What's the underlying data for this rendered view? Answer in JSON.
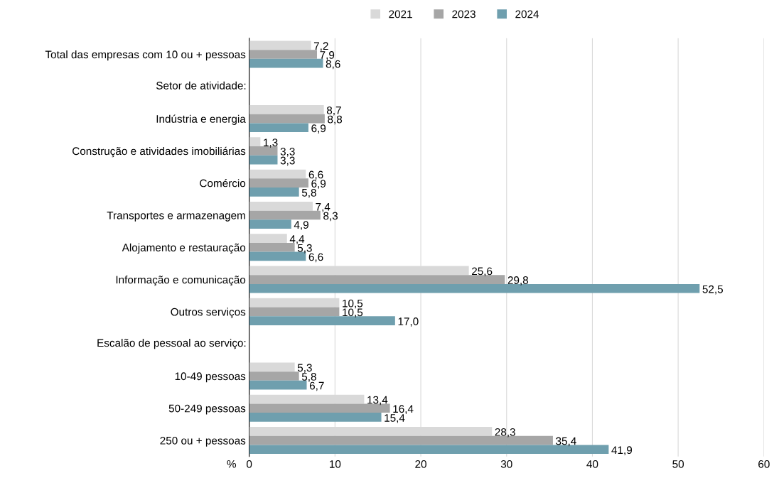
{
  "chart_data": {
    "type": "bar",
    "orientation": "horizontal",
    "xlabel": "%",
    "categories": [
      "Total das empresas com 10 ou + pessoas",
      null,
      "Indústria e energia",
      "Construção e atividades imobiliárias",
      "Comércio",
      "Transportes e armazenagem",
      "Alojamento e restauração",
      "Informação e comunicação",
      "Outros serviços",
      null,
      "10-49 pessoas",
      "50-249 pessoas",
      "250 ou + pessoas"
    ],
    "series": [
      {
        "name": "2021",
        "color": "#d9d9d9",
        "values": [
          7.2,
          null,
          8.7,
          1.3,
          6.6,
          7.4,
          4.4,
          25.6,
          10.5,
          null,
          5.3,
          13.4,
          28.3
        ],
        "value_labels": [
          "7,2",
          null,
          "8,7",
          "1,3",
          "6,6",
          "7,4",
          "4,4",
          "25,6",
          "10,5",
          null,
          "5,3",
          "13,4",
          "28,3"
        ]
      },
      {
        "name": "2023",
        "color": "#a6a6a6",
        "values": [
          7.9,
          null,
          8.8,
          3.3,
          6.9,
          8.3,
          5.3,
          29.8,
          10.5,
          null,
          5.8,
          16.4,
          35.4
        ],
        "value_labels": [
          "7,9",
          null,
          "8,8",
          "3,3",
          "6,9",
          "8,3",
          "5,3",
          "29,8",
          "10,5",
          null,
          "5,8",
          "16,4",
          "35,4"
        ]
      },
      {
        "name": "2024",
        "color": "#6f9fae",
        "values": [
          8.6,
          null,
          6.9,
          3.3,
          5.8,
          4.9,
          6.6,
          52.5,
          17.0,
          null,
          6.7,
          15.4,
          41.9
        ],
        "value_labels": [
          "8,6",
          null,
          "6,9",
          "3,3",
          "5,8",
          "4,9",
          "6,6",
          "52,5",
          "17,0",
          null,
          "6,7",
          "15,4",
          "41,9"
        ]
      }
    ],
    "xlim": [
      0,
      60
    ],
    "xticks": [
      0,
      10,
      20,
      30,
      40,
      50,
      60
    ],
    "grid": "x",
    "legend": "top",
    "annotations": [
      "Setor de atividade:",
      "Escalão de pessoal ao serviço:"
    ]
  }
}
